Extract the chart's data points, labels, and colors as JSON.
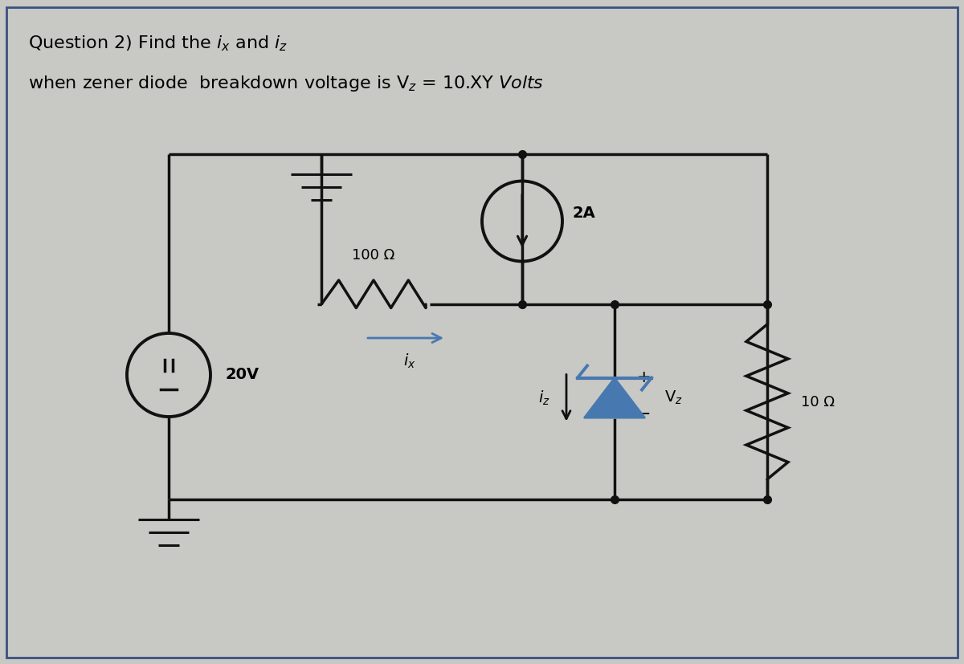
{
  "bg_color": "#c8c8c4",
  "circuit_color": "#111111",
  "arrow_color": "#4878b0",
  "zener_color": "#4878b0",
  "lw": 2.5,
  "title_line1": "Question 2) Find the $i_x$ and $i_z$",
  "title_line2": "when zener diode  breakdown voltage is V$_z$ = 10.XY $\\it{Volts}$",
  "label_20V": "20V",
  "label_100R": "100 Ω",
  "label_2A": "2A",
  "label_10R": "10 Ω",
  "label_Vz": "V$_z$",
  "label_ix": "$i_x$",
  "label_iz": "$i_z$"
}
